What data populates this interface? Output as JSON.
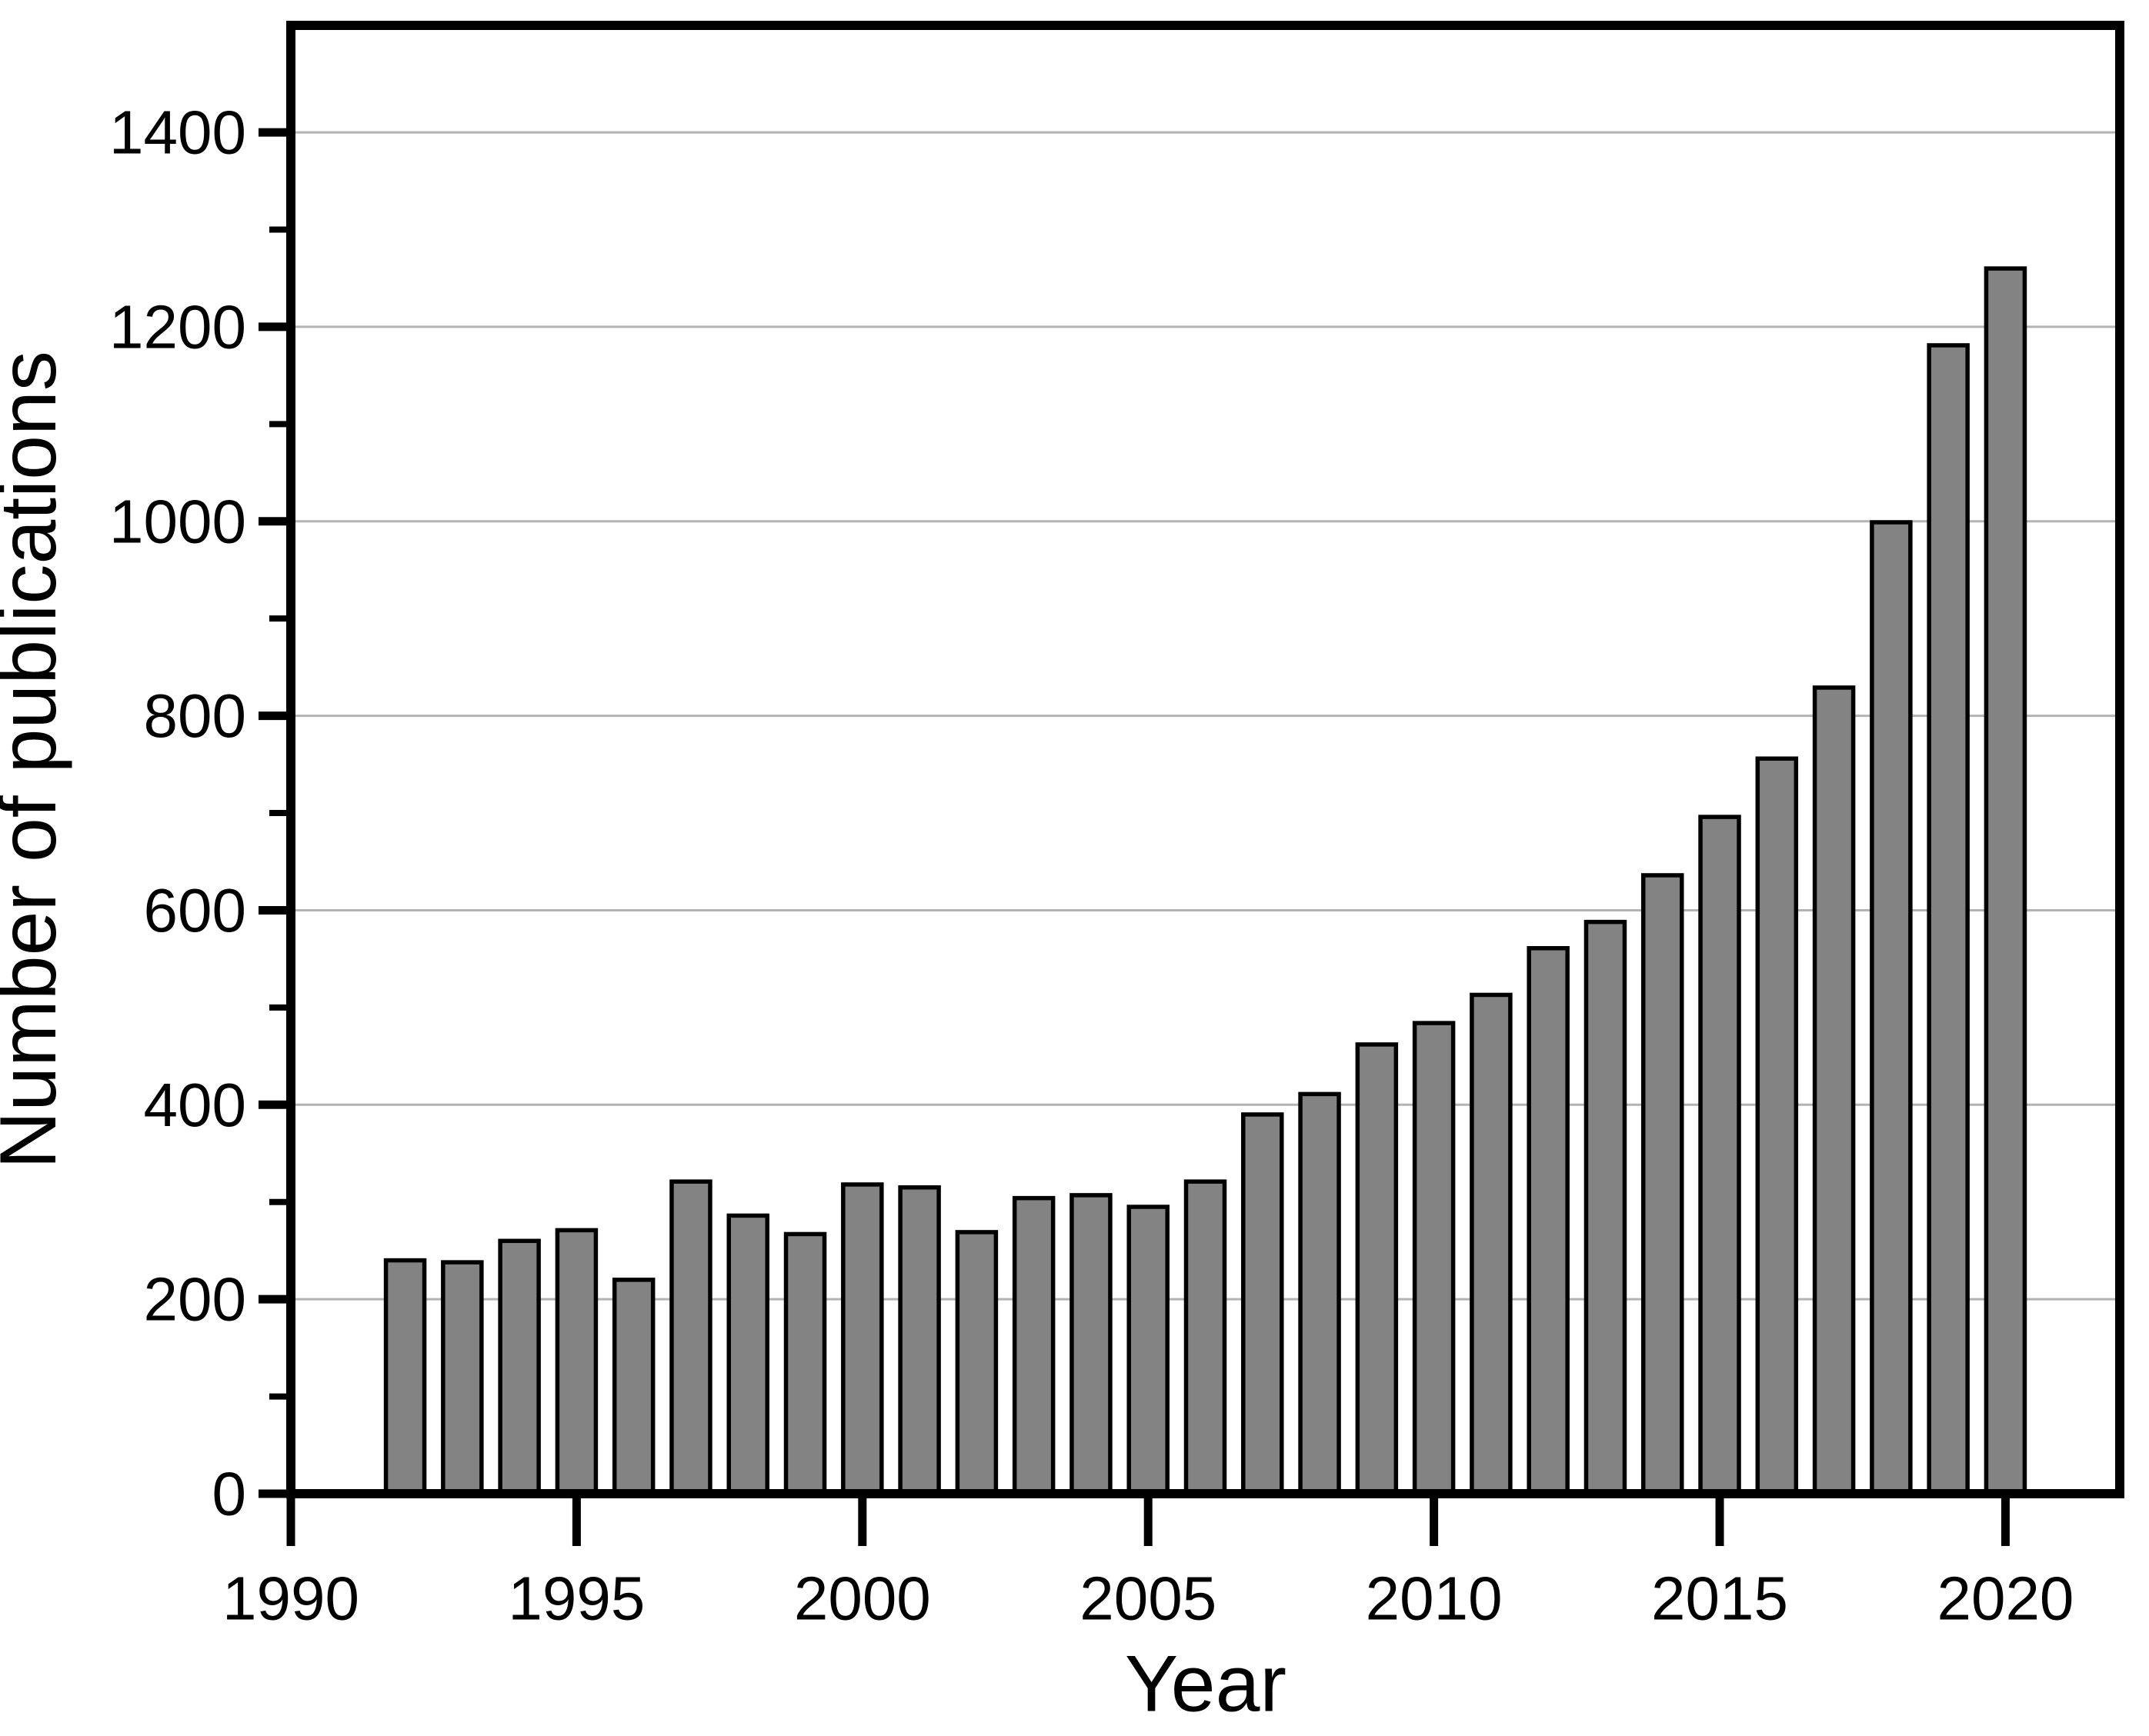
{
  "chart_data": {
    "type": "bar",
    "title": "",
    "xlabel": "Year",
    "ylabel": "Number of publications",
    "categories": [
      1992,
      1993,
      1994,
      1995,
      1996,
      1997,
      1998,
      1999,
      2000,
      2001,
      2002,
      2003,
      2004,
      2005,
      2006,
      2007,
      2008,
      2009,
      2010,
      2011,
      2012,
      2013,
      2014,
      2015,
      2016,
      2017,
      2018,
      2019,
      2020
    ],
    "values": [
      240,
      238,
      260,
      271,
      220,
      321,
      286,
      267,
      318,
      315,
      269,
      304,
      307,
      295,
      321,
      390,
      411,
      462,
      484,
      513,
      561,
      588,
      636,
      696,
      756,
      829,
      999,
      1181,
      1260
    ],
    "x_tick_labels": [
      "1990",
      "1995",
      "2000",
      "2005",
      "2010",
      "2015",
      "2020"
    ],
    "x_ticks": [
      1990,
      1995,
      2000,
      2005,
      2010,
      2015,
      2020
    ],
    "y_tick_labels": [
      "0",
      "200",
      "400",
      "600",
      "800",
      "1000",
      "1200",
      "1400"
    ],
    "y_ticks": [
      0,
      200,
      400,
      600,
      800,
      1000,
      1200,
      1400
    ],
    "y_minor_ticks": [
      100,
      300,
      500,
      700,
      900,
      1100,
      1300
    ],
    "xlim": [
      1990,
      2022
    ],
    "ylim": [
      0,
      1510
    ],
    "grid": "horizontal-major-only",
    "legend": "none",
    "bar_fill_color": "#838383",
    "bar_border_color": "#000000",
    "gridline_color": "#b3b3b3",
    "frame_color": "#000000",
    "background_color": "#ffffff"
  }
}
